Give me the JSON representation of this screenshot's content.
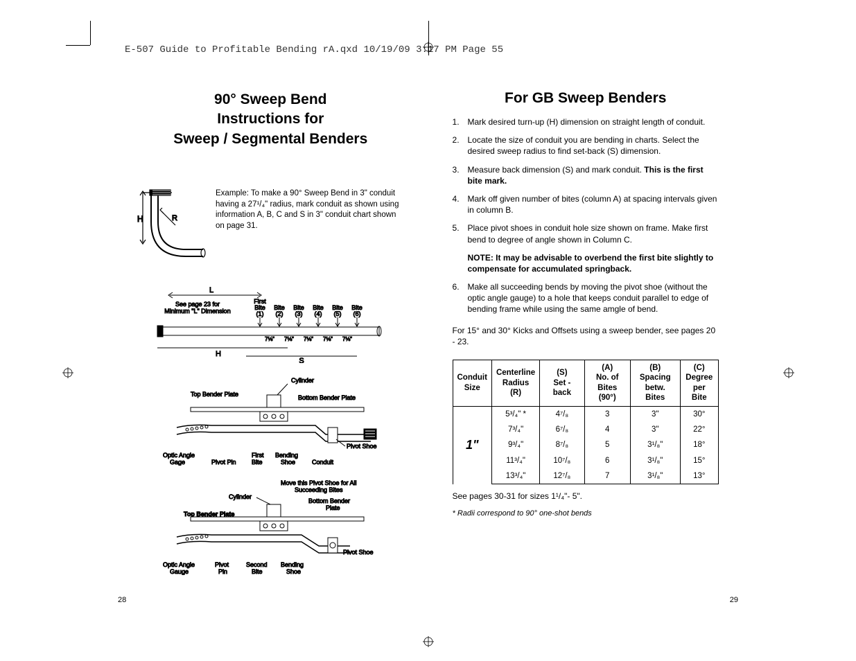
{
  "header": "E-507 Guide to Profitable Bending rA.qxd  10/19/09  3:17 PM  Page 55",
  "left": {
    "title_l1": "90° Sweep Bend",
    "title_l2": "Instructions for",
    "title_l3": "Sweep / Segmental Benders",
    "example": "Example: To make a 90° Sweep Bend in 3\" conduit having a 27¹/₄\" radius, mark conduit as shown using information A, B, C and S in 3\" conduit chart shown on page 31.",
    "fig1": {
      "H": "H",
      "R": "R"
    },
    "fig2": {
      "L": "L",
      "H": "H",
      "S": "S",
      "see_page": "See page 23 for",
      "min_l": "Minimum \"L\" Dimension",
      "first_bite": "First",
      "bite_label": "Bite",
      "bite_nums": [
        "(1)",
        "(2)",
        "(3)",
        "(4)",
        "(5)",
        "(6)"
      ],
      "spacing": "7⅛\""
    },
    "fig3": {
      "cylinder": "Cylinder",
      "top_plate": "Top Bender Plate",
      "bottom_plate": "Bottom Bender Plate",
      "optic": "Optic Angle",
      "gage": "Gage",
      "pivot_pin": "Pivot Pin",
      "first_bite": "First",
      "bite": "Bite",
      "bending": "Bending",
      "shoe": "Shoe",
      "conduit": "Conduit",
      "pivot_shoe": "Pivot Shoe"
    },
    "fig4": {
      "move": "Move this Pivot Shoe for All",
      "succeeding": "Succeeding Bites",
      "cylinder": "Cylinder",
      "bottom_bender": "Bottom Bender",
      "plate": "Plate",
      "top_plate": "Top Bender Plate",
      "optic": "Optic Angle",
      "gauge": "Gauge",
      "pivot": "Pivot",
      "pin": "Pin",
      "second": "Second",
      "bite": "Bite",
      "bending": "Bending",
      "shoe": "Shoe",
      "pivot_shoe": "Pivot Shoe"
    },
    "page_num": "28"
  },
  "right": {
    "title": "For GB Sweep Benders",
    "steps": [
      "Mark desired turn-up (H) dimension on straight length of conduit.",
      "Locate the size of conduit you are bending in charts. Select the desired sweep radius to find set-back (S) dimension.",
      "Measure back dimension (S) and mark conduit. ",
      "Mark off given number of bites (column A) at spacing intervals given in column B.",
      "Place pivot shoes in conduit hole size shown on frame. Make first bend to degree of angle shown in Column C."
    ],
    "step3_bold": "This is the first bite mark.",
    "note": "NOTE: It may be advisable to overbend the first bite slightly to compensate for accumulated springback.",
    "step6": "Make all succeeding bends by moving the pivot shoe (without the optic angle gauge) to a hole that keeps conduit parallel to edge of bending frame while using the same amgle of bend.",
    "post_note": "For 15° and 30° Kicks and Offsets using a sweep bender, see pages 20 - 23.",
    "table": {
      "headers": {
        "conduit_l1": "Conduit",
        "conduit_l2": "Size",
        "r_l1": "Centerline",
        "r_l2": "Radius",
        "r_l3": "(R)",
        "s_l1": "(S)",
        "s_l2": "Set - back",
        "a_l1": "(A)",
        "a_l2": "No. of",
        "a_l3": "Bites (90°)",
        "b_l1": "(B)",
        "b_l2": "Spacing",
        "b_l3": "betw. Bites",
        "c_l1": "(C)",
        "c_l2": "Degree",
        "c_l3": "per Bite"
      },
      "conduit_size": "1\"",
      "rows": [
        {
          "r": "5³/₄\" *",
          "s": "4⁷/₈",
          "a": "3",
          "b": "3\"",
          "c": "30°"
        },
        {
          "r": "7³/₄\"",
          "s": "6⁷/₈",
          "a": "4",
          "b": "3\"",
          "c": "22°"
        },
        {
          "r": "9³/₄\"",
          "s": "8⁷/₈",
          "a": "5",
          "b": "3¹/₈\"",
          "c": "18°"
        },
        {
          "r": "11³/₄\"",
          "s": "10⁷/₈",
          "a": "6",
          "b": "3¹/₈\"",
          "c": "15°"
        },
        {
          "r": "13³/₄\"",
          "s": "12⁷/₈",
          "a": "7",
          "b": "3¹/₈\"",
          "c": "13°"
        }
      ]
    },
    "table_note": "See pages 30-31 for sizes 1¹/₄\"-  5\".",
    "footnote": "* Radii correspond to 90° one-shot bends",
    "page_num": "29"
  }
}
